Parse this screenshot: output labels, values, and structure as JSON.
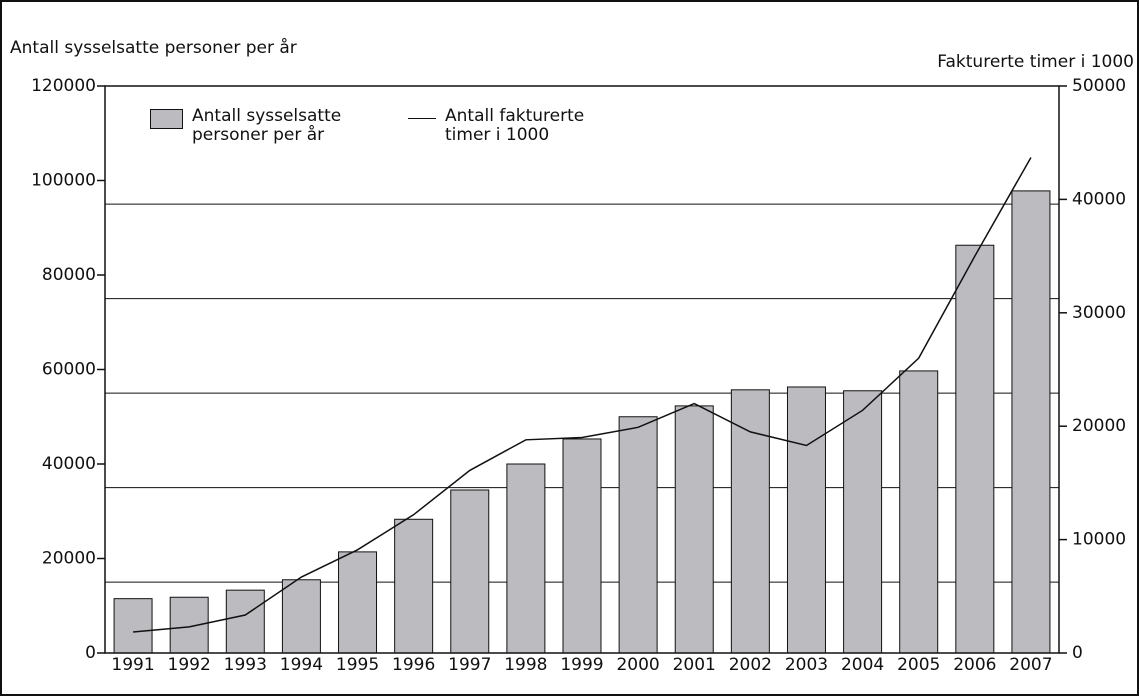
{
  "chart_data": {
    "type": "bar-line",
    "y_label": "Antall sysselsatte personer per år",
    "y2_label": "Fakturerte timer i 1000",
    "categories": [
      "1991",
      "1992",
      "1993",
      "1994",
      "1995",
      "1996",
      "1997",
      "1998",
      "1999",
      "2000",
      "2001",
      "2002",
      "2003",
      "2004",
      "2005",
      "2006",
      "2007"
    ],
    "series": [
      {
        "name": "Antall sysselsatte personer per år",
        "type": "bar",
        "color": "#bcbcc0",
        "axis": "y",
        "values": [
          11500,
          11800,
          13300,
          15500,
          21400,
          28300,
          34500,
          40000,
          45300,
          50000,
          52300,
          55700,
          56300,
          55500,
          59700,
          86300,
          97800
        ]
      },
      {
        "name": "Antall fakturerte timer i 1000",
        "type": "line",
        "color": "#111111",
        "axis": "y2",
        "values": [
          1850,
          2300,
          3350,
          6700,
          9100,
          12200,
          16100,
          18800,
          19000,
          19900,
          22000,
          19500,
          18300,
          21400,
          26000,
          35000,
          43700
        ]
      }
    ],
    "ylim": [
      0,
      120000
    ],
    "yticks": [
      0,
      20000,
      40000,
      60000,
      80000,
      100000,
      120000
    ],
    "y2lim": [
      0,
      50000
    ],
    "y2ticks": [
      0,
      10000,
      20000,
      30000,
      40000,
      50000
    ],
    "ygrid": [
      15000,
      35000,
      55000,
      75000,
      95000
    ]
  }
}
